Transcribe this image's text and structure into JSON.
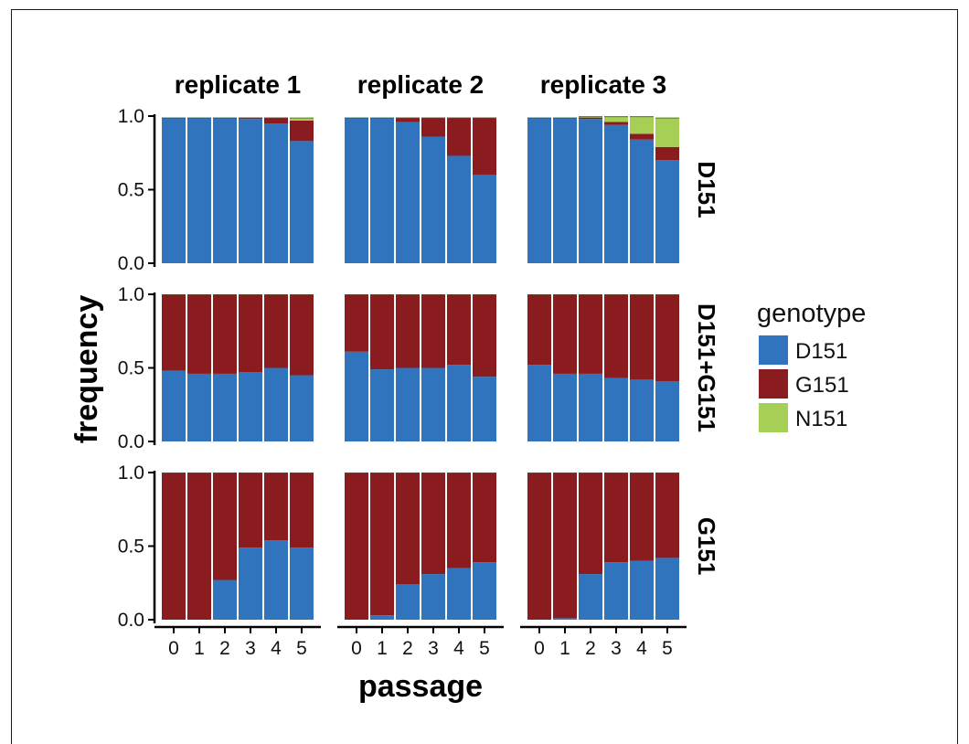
{
  "chart_data": {
    "type": "bar",
    "stacked": true,
    "xlabel": "passage",
    "ylabel": "frequency",
    "x_ticks": [
      "0",
      "1",
      "2",
      "3",
      "4",
      "5"
    ],
    "y_ticks": [
      "0.0",
      "0.5",
      "1.0"
    ],
    "ylim": [
      0,
      1
    ],
    "grid": false,
    "legend": {
      "title": "genotype",
      "placement": "right",
      "entries": [
        {
          "name": "D151",
          "color": "#2f74bd"
        },
        {
          "name": "G151",
          "color": "#8a1c1f"
        },
        {
          "name": "N151",
          "color": "#a6cf56"
        }
      ]
    },
    "facet_columns": [
      "replicate 1",
      "replicate 2",
      "replicate 3"
    ],
    "facet_rows": [
      "D151",
      "D151+G151",
      "G151"
    ],
    "panels": [
      {
        "row": "D151",
        "column": "replicate 1",
        "D151": [
          0.99,
          0.99,
          0.99,
          0.98,
          0.95,
          0.83
        ],
        "G151": [
          0.0,
          0.0,
          0.0,
          0.01,
          0.04,
          0.14
        ],
        "N151": [
          0.0,
          0.0,
          0.0,
          0.0,
          0.0,
          0.02
        ]
      },
      {
        "row": "D151",
        "column": "replicate 2",
        "D151": [
          0.99,
          0.99,
          0.96,
          0.86,
          0.73,
          0.6
        ],
        "G151": [
          0.0,
          0.0,
          0.03,
          0.13,
          0.26,
          0.39
        ],
        "N151": [
          0.0,
          0.0,
          0.0,
          0.0,
          0.0,
          0.0
        ]
      },
      {
        "row": "D151",
        "column": "replicate 3",
        "D151": [
          0.99,
          0.99,
          0.98,
          0.94,
          0.84,
          0.7
        ],
        "G151": [
          0.0,
          0.0,
          0.01,
          0.02,
          0.04,
          0.09
        ],
        "N151": [
          0.0,
          0.0,
          0.01,
          0.04,
          0.12,
          0.2
        ]
      },
      {
        "row": "D151+G151",
        "column": "replicate 1",
        "D151": [
          0.48,
          0.46,
          0.46,
          0.47,
          0.5,
          0.45
        ],
        "G151": [
          0.52,
          0.54,
          0.54,
          0.53,
          0.5,
          0.55
        ],
        "N151": [
          0.0,
          0.0,
          0.0,
          0.0,
          0.0,
          0.0
        ]
      },
      {
        "row": "D151+G151",
        "column": "replicate 2",
        "D151": [
          0.61,
          0.49,
          0.5,
          0.5,
          0.52,
          0.44
        ],
        "G151": [
          0.39,
          0.51,
          0.5,
          0.5,
          0.48,
          0.56
        ],
        "N151": [
          0.0,
          0.0,
          0.0,
          0.0,
          0.0,
          0.0
        ]
      },
      {
        "row": "D151+G151",
        "column": "replicate 3",
        "D151": [
          0.52,
          0.46,
          0.46,
          0.43,
          0.42,
          0.41
        ],
        "G151": [
          0.48,
          0.54,
          0.54,
          0.57,
          0.58,
          0.59
        ],
        "N151": [
          0.0,
          0.0,
          0.0,
          0.0,
          0.0,
          0.0
        ]
      },
      {
        "row": "G151",
        "column": "replicate 1",
        "D151": [
          0.0,
          0.0,
          0.27,
          0.49,
          0.54,
          0.49
        ],
        "G151": [
          1.0,
          1.0,
          0.73,
          0.51,
          0.46,
          0.51
        ],
        "N151": [
          0.0,
          0.0,
          0.0,
          0.0,
          0.0,
          0.0
        ]
      },
      {
        "row": "G151",
        "column": "replicate 2",
        "D151": [
          0.0,
          0.03,
          0.24,
          0.31,
          0.35,
          0.39
        ],
        "G151": [
          1.0,
          0.97,
          0.76,
          0.69,
          0.65,
          0.61
        ],
        "N151": [
          0.0,
          0.0,
          0.0,
          0.0,
          0.0,
          0.0
        ]
      },
      {
        "row": "G151",
        "column": "replicate 3",
        "D151": [
          0.0,
          0.01,
          0.31,
          0.39,
          0.4,
          0.42
        ],
        "G151": [
          1.0,
          0.99,
          0.69,
          0.61,
          0.6,
          0.58
        ],
        "N151": [
          0.0,
          0.0,
          0.0,
          0.0,
          0.0,
          0.0
        ]
      }
    ]
  }
}
